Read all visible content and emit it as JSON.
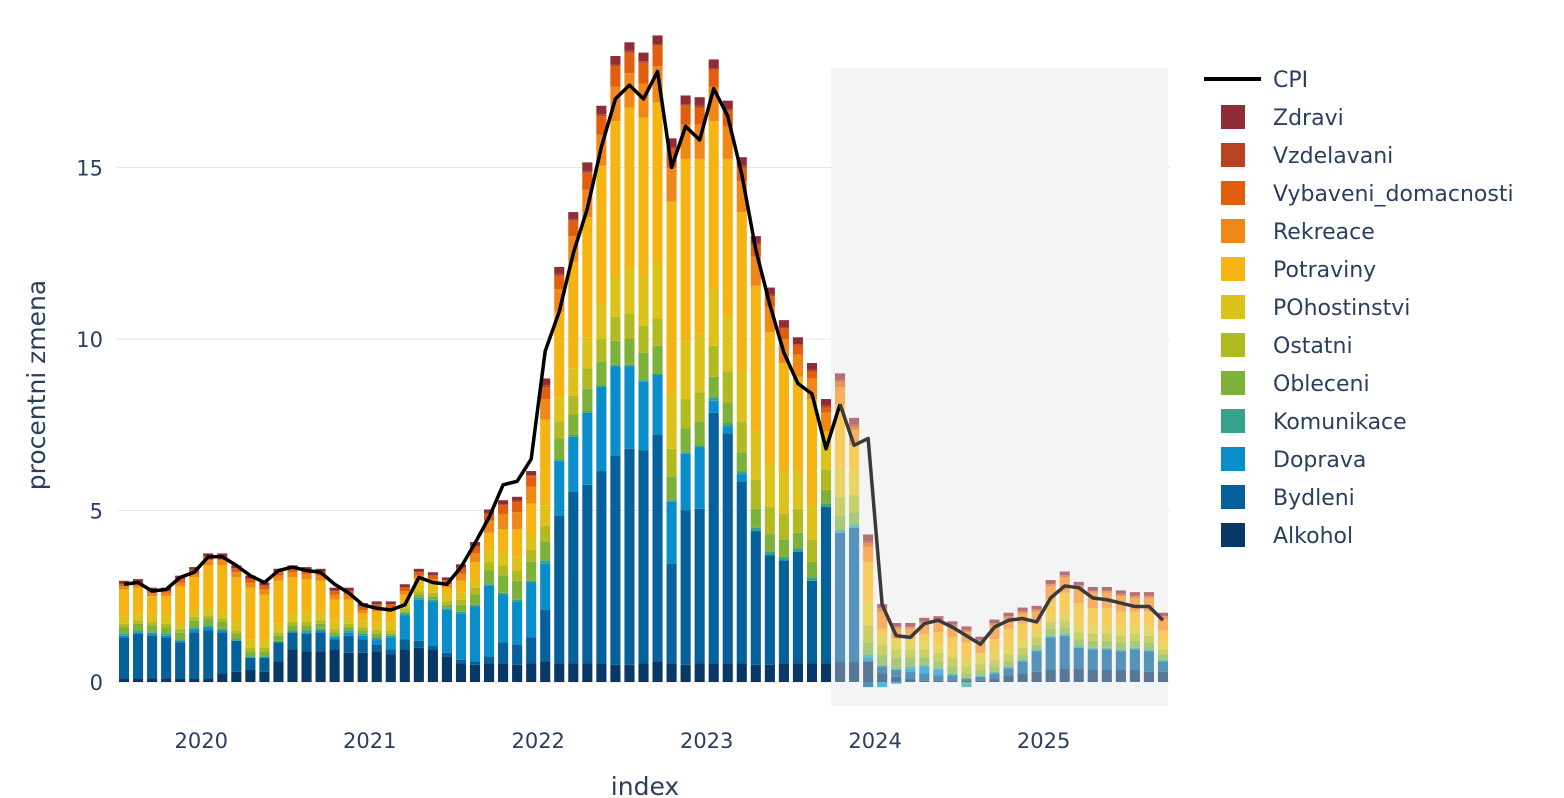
{
  "chart_data": {
    "type": "bar",
    "barmode": "stack",
    "xlabel": "index",
    "ylabel": "procentni zmena",
    "yticks": [
      0,
      5,
      10,
      15
    ],
    "ylim": [
      -0.2,
      18.0
    ],
    "x_tick_labels": [
      "2020",
      "2021",
      "2022",
      "2023",
      "2024",
      "2025"
    ],
    "x_range": [
      "2019-07",
      "2025-09"
    ],
    "forecast_region": {
      "start": "2023-10",
      "end": "2025-09",
      "color": "#efefef"
    },
    "legend_position": "right",
    "colors": {
      "Zdravi": "#8f2d36",
      "Vzdelavani": "#b8431f",
      "Vybaveni_domacnosti": "#e15e0f",
      "Rekreace": "#f08818",
      "Potraviny": "#f3b414",
      "POhostinstvi": "#dcc21b",
      "Ostatni": "#b2ba22",
      "Obleceni": "#7cb23a",
      "Komunikace": "#35a38b",
      "Doprava": "#0a8ec9",
      "Bydleni": "#06619a",
      "Alkohol": "#083866",
      "CPI": "#000000"
    },
    "legend": [
      "CPI",
      "Zdravi",
      "Vzdelavani",
      "Vybaveni_domacnosti",
      "Rekreace",
      "Potraviny",
      "POhostinstvi",
      "Ostatni",
      "Obleceni",
      "Komunikace",
      "Doprava",
      "Bydleni",
      "Alkohol"
    ],
    "dates": [
      "2019-07",
      "2019-08",
      "2019-09",
      "2019-10",
      "2019-11",
      "2019-12",
      "2020-01",
      "2020-02",
      "2020-03",
      "2020-04",
      "2020-05",
      "2020-06",
      "2020-07",
      "2020-08",
      "2020-09",
      "2020-10",
      "2020-11",
      "2020-12",
      "2021-01",
      "2021-02",
      "2021-03",
      "2021-04",
      "2021-05",
      "2021-06",
      "2021-07",
      "2021-08",
      "2021-09",
      "2021-10",
      "2021-11",
      "2021-12",
      "2022-01",
      "2022-02",
      "2022-03",
      "2022-04",
      "2022-05",
      "2022-06",
      "2022-07",
      "2022-08",
      "2022-09",
      "2022-10",
      "2022-11",
      "2022-12",
      "2023-01",
      "2023-02",
      "2023-03",
      "2023-04",
      "2023-05",
      "2023-06",
      "2023-07",
      "2023-08",
      "2023-09",
      "2023-10",
      "2023-11",
      "2023-12",
      "2024-01",
      "2024-02",
      "2024-03",
      "2024-04",
      "2024-05",
      "2024-06",
      "2024-07",
      "2024-08",
      "2024-09",
      "2024-10",
      "2024-11",
      "2024-12",
      "2025-01",
      "2025-02",
      "2025-03",
      "2025-04",
      "2025-05",
      "2025-06",
      "2025-07",
      "2025-08",
      "2025-09"
    ],
    "cpi": [
      2.85,
      2.9,
      2.65,
      2.7,
      3.05,
      3.2,
      3.65,
      3.65,
      3.4,
      3.1,
      2.9,
      3.25,
      3.35,
      3.25,
      3.2,
      2.85,
      2.6,
      2.25,
      2.15,
      2.1,
      2.25,
      3.05,
      2.9,
      2.85,
      3.35,
      4.05,
      4.8,
      5.75,
      5.85,
      6.5,
      9.65,
      10.8,
      12.5,
      13.8,
      15.6,
      17.0,
      17.4,
      17.0,
      17.8,
      15.0,
      16.2,
      15.8,
      17.3,
      16.5,
      14.8,
      12.6,
      11.0,
      9.6,
      8.7,
      8.4,
      6.8,
      8.1,
      6.9,
      7.1,
      2.25,
      1.35,
      1.3,
      1.7,
      1.8,
      1.6,
      1.35,
      1.1,
      1.6,
      1.8,
      1.85,
      1.75,
      2.45,
      2.8,
      2.75,
      2.45,
      2.4,
      2.3,
      2.2,
      2.2,
      1.8
    ],
    "series": [
      {
        "name": "Alkohol",
        "values": [
          0.1,
          0.1,
          0.1,
          0.1,
          0.1,
          0.1,
          0.1,
          0.25,
          0.3,
          0.35,
          0.3,
          0.6,
          0.95,
          0.9,
          0.9,
          0.95,
          0.85,
          0.85,
          0.9,
          0.8,
          0.95,
          1.0,
          0.95,
          0.75,
          0.55,
          0.5,
          0.55,
          0.55,
          0.5,
          0.55,
          0.6,
          0.55,
          0.55,
          0.55,
          0.55,
          0.5,
          0.5,
          0.55,
          0.6,
          0.55,
          0.5,
          0.55,
          0.55,
          0.55,
          0.55,
          0.5,
          0.5,
          0.55,
          0.55,
          0.55,
          0.55,
          0.6,
          0.6,
          0.6,
          0.25,
          0.15,
          0.1,
          0.05,
          0.05,
          0.05,
          0.05,
          0.05,
          0.1,
          0.2,
          0.25,
          0.3,
          0.35,
          0.4,
          0.4,
          0.35,
          0.35,
          0.35,
          0.35,
          0.3,
          0.3
        ]
      },
      {
        "name": "Bydleni",
        "values": [
          1.2,
          1.3,
          1.25,
          1.2,
          1.05,
          1.35,
          1.4,
          1.2,
          0.9,
          0.35,
          0.4,
          0.55,
          0.5,
          0.5,
          0.55,
          0.3,
          0.5,
          0.4,
          0.2,
          0.15,
          0.3,
          0.2,
          0.1,
          0.1,
          0.1,
          0.1,
          0.2,
          0.6,
          0.6,
          0.75,
          1.5,
          4.3,
          5.0,
          5.2,
          5.6,
          6.1,
          6.3,
          6.2,
          6.6,
          2.9,
          4.5,
          4.5,
          7.3,
          6.7,
          5.3,
          3.9,
          3.2,
          3.0,
          3.25,
          2.4,
          4.55,
          3.75,
          3.9,
          -0.15,
          0.2,
          0.2,
          0.2,
          0.2,
          0.15,
          0.15,
          0.05,
          0.1,
          0.15,
          0.2,
          0.35,
          0.6,
          0.95,
          0.95,
          0.6,
          0.6,
          0.6,
          0.55,
          0.6,
          0.6,
          0.3
        ]
      },
      {
        "name": "Doprava",
        "values": [
          0.05,
          0.05,
          0.05,
          0.05,
          0.05,
          0.1,
          0.1,
          0.05,
          0.0,
          0.0,
          0.0,
          0.0,
          0.0,
          0.05,
          0.05,
          0.05,
          0.1,
          0.1,
          0.15,
          0.35,
          0.7,
          1.2,
          1.3,
          1.25,
          1.35,
          1.6,
          2.05,
          1.4,
          1.25,
          1.6,
          1.35,
          1.6,
          1.6,
          2.1,
          2.45,
          2.6,
          2.4,
          2.0,
          1.75,
          1.8,
          1.65,
          1.8,
          0.35,
          0.2,
          0.2,
          0.0,
          0.0,
          0.0,
          0.0,
          0.0,
          0.0,
          0.0,
          0.0,
          0.1,
          -0.15,
          -0.05,
          0.1,
          0.2,
          0.15,
          0.0,
          0.0,
          0.0,
          0.0,
          0.0,
          0.0,
          0.0,
          0.0,
          0.0,
          0.0,
          0.0,
          0.0,
          0.0,
          0.0,
          0.0,
          0.0
        ]
      },
      {
        "name": "Komunikace",
        "values": [
          0.05,
          0.05,
          0.05,
          0.05,
          0.05,
          0.05,
          0.05,
          0.05,
          0.05,
          0.05,
          0.05,
          0.05,
          0.05,
          0.05,
          0.05,
          0.05,
          0.05,
          0.05,
          0.05,
          0.05,
          0.05,
          0.05,
          0.05,
          0.05,
          0.05,
          0.05,
          0.05,
          0.05,
          0.05,
          0.05,
          0.1,
          0.05,
          0.05,
          0.05,
          0.05,
          0.05,
          0.05,
          0.05,
          0.05,
          0.05,
          0.05,
          0.05,
          0.1,
          0.1,
          0.1,
          0.1,
          0.1,
          0.1,
          0.1,
          0.1,
          0.1,
          0.1,
          0.1,
          0.1,
          0.05,
          0.05,
          0.05,
          0.05,
          0.05,
          0.05,
          -0.15,
          0.05,
          0.05,
          0.05,
          0.05,
          0.05,
          0.05,
          0.05,
          0.05,
          0.05,
          0.05,
          0.05,
          0.05,
          0.05,
          0.05
        ]
      },
      {
        "name": "Obleceni",
        "values": [
          0.2,
          0.2,
          0.2,
          0.2,
          0.2,
          0.2,
          0.2,
          0.2,
          0.15,
          0.15,
          0.15,
          0.15,
          0.15,
          0.15,
          0.15,
          0.1,
          0.1,
          0.1,
          0.1,
          0.05,
          0.05,
          0.1,
          0.1,
          0.1,
          0.2,
          0.3,
          0.4,
          0.5,
          0.55,
          0.55,
          0.55,
          0.6,
          0.6,
          0.65,
          0.7,
          0.7,
          0.75,
          0.8,
          0.8,
          0.7,
          0.7,
          0.7,
          0.6,
          0.6,
          0.55,
          0.55,
          0.5,
          0.5,
          0.45,
          0.45,
          0.4,
          0.4,
          0.35,
          0.35,
          0.3,
          0.3,
          0.25,
          0.2,
          0.2,
          0.2,
          0.15,
          0.15,
          0.15,
          0.15,
          0.15,
          0.15,
          0.2,
          0.2,
          0.2,
          0.2,
          0.2,
          0.2,
          0.2,
          0.2,
          0.15
        ]
      },
      {
        "name": "Ostatni",
        "values": [
          0.1,
          0.1,
          0.1,
          0.1,
          0.1,
          0.1,
          0.1,
          0.1,
          0.1,
          0.1,
          0.1,
          0.1,
          0.1,
          0.1,
          0.1,
          0.1,
          0.1,
          0.1,
          0.1,
          0.1,
          0.1,
          0.1,
          0.1,
          0.1,
          0.15,
          0.2,
          0.25,
          0.3,
          0.3,
          0.35,
          0.45,
          0.5,
          0.55,
          0.6,
          0.65,
          0.7,
          0.75,
          0.8,
          0.8,
          0.8,
          0.85,
          0.85,
          0.9,
          0.9,
          0.9,
          0.85,
          0.8,
          0.75,
          0.7,
          0.65,
          0.6,
          0.55,
          0.5,
          0.5,
          0.3,
          0.25,
          0.25,
          0.25,
          0.25,
          0.25,
          0.2,
          0.2,
          0.2,
          0.2,
          0.2,
          0.2,
          0.2,
          0.2,
          0.2,
          0.2,
          0.2,
          0.2,
          0.2,
          0.2,
          0.15
        ]
      },
      {
        "name": "POhostinstvi",
        "values": [
          0.2,
          0.2,
          0.2,
          0.2,
          0.2,
          0.2,
          0.25,
          0.25,
          0.25,
          0.25,
          0.25,
          0.25,
          0.25,
          0.25,
          0.25,
          0.25,
          0.2,
          0.2,
          0.2,
          0.2,
          0.2,
          0.2,
          0.2,
          0.2,
          0.2,
          0.25,
          0.3,
          0.35,
          0.4,
          0.45,
          0.6,
          0.7,
          0.8,
          0.9,
          1.05,
          1.2,
          1.3,
          1.45,
          1.6,
          1.6,
          1.7,
          1.7,
          1.65,
          1.6,
          1.5,
          1.4,
          1.3,
          1.2,
          1.1,
          1.0,
          0.9,
          0.85,
          0.75,
          0.7,
          0.3,
          0.25,
          0.25,
          0.25,
          0.25,
          0.25,
          0.25,
          0.25,
          0.25,
          0.25,
          0.25,
          0.2,
          0.25,
          0.25,
          0.25,
          0.25,
          0.25,
          0.25,
          0.25,
          0.25,
          0.2
        ]
      },
      {
        "name": "Potraviny",
        "values": [
          0.8,
          0.75,
          0.55,
          0.6,
          1.05,
          0.95,
          1.2,
          1.3,
          1.3,
          1.5,
          1.3,
          1.25,
          1.05,
          1.0,
          0.9,
          0.6,
          0.5,
          0.2,
          0.35,
          0.35,
          0.2,
          0.15,
          0.1,
          0.2,
          0.35,
          0.5,
          0.55,
          0.7,
          0.8,
          0.9,
          2.5,
          2.5,
          3.1,
          3.5,
          4.0,
          4.5,
          4.7,
          4.6,
          4.7,
          5.6,
          5.3,
          5.1,
          4.9,
          4.6,
          4.6,
          4.25,
          3.8,
          3.2,
          2.75,
          3.1,
          0.2,
          1.85,
          0.7,
          1.15,
          0.15,
          0.05,
          0.05,
          0.2,
          0.35,
          0.35,
          0.45,
          0.05,
          0.35,
          0.5,
          0.45,
          0.25,
          0.4,
          0.55,
          0.6,
          0.5,
          0.5,
          0.45,
          0.4,
          0.45,
          0.35
        ]
      },
      {
        "name": "Rekreace",
        "values": [
          0.1,
          0.1,
          0.1,
          0.1,
          0.1,
          0.1,
          0.15,
          0.15,
          0.15,
          0.15,
          0.15,
          0.15,
          0.15,
          0.15,
          0.15,
          0.15,
          0.15,
          0.1,
          0.1,
          0.1,
          0.1,
          0.1,
          0.1,
          0.1,
          0.2,
          0.25,
          0.35,
          0.45,
          0.5,
          0.5,
          0.6,
          0.65,
          0.75,
          0.8,
          0.9,
          1.0,
          1.0,
          1.0,
          1.05,
          1.0,
          1.0,
          1.0,
          1.0,
          0.95,
          0.9,
          0.85,
          0.75,
          0.7,
          0.65,
          0.6,
          0.55,
          0.5,
          0.45,
          0.45,
          0.5,
          0.3,
          0.3,
          0.3,
          0.3,
          0.3,
          0.3,
          0.3,
          0.4,
          0.3,
          0.3,
          0.3,
          0.4,
          0.45,
          0.45,
          0.45,
          0.45,
          0.45,
          0.4,
          0.4,
          0.35
        ]
      },
      {
        "name": "Vybaveni_domacnosti",
        "values": [
          0.05,
          0.05,
          0.05,
          0.05,
          0.1,
          0.1,
          0.1,
          0.1,
          0.1,
          0.1,
          0.1,
          0.1,
          0.1,
          0.1,
          0.1,
          0.1,
          0.1,
          0.1,
          0.1,
          0.1,
          0.1,
          0.1,
          0.1,
          0.1,
          0.15,
          0.2,
          0.2,
          0.25,
          0.3,
          0.3,
          0.35,
          0.4,
          0.45,
          0.5,
          0.55,
          0.6,
          0.6,
          0.6,
          0.6,
          0.55,
          0.55,
          0.5,
          0.5,
          0.45,
          0.4,
          0.35,
          0.3,
          0.3,
          0.25,
          0.2,
          0.15,
          0.15,
          0.1,
          0.1,
          0.1,
          0.05,
          0.05,
          0.05,
          0.05,
          0.05,
          0.05,
          0.05,
          0.05,
          0.05,
          0.05,
          0.05,
          0.05,
          0.05,
          0.05,
          0.05,
          0.05,
          0.05,
          0.05,
          0.05,
          0.05
        ]
      },
      {
        "name": "Vzdelavani",
        "values": [
          0.02,
          0.02,
          0.02,
          0.02,
          0.02,
          0.02,
          0.02,
          0.02,
          0.02,
          0.02,
          0.02,
          0.02,
          0.02,
          0.02,
          0.02,
          0.02,
          0.02,
          0.02,
          0.02,
          0.02,
          0.02,
          0.02,
          0.02,
          0.02,
          0.03,
          0.03,
          0.03,
          0.03,
          0.03,
          0.03,
          0.05,
          0.05,
          0.05,
          0.05,
          0.05,
          0.05,
          0.05,
          0.05,
          0.05,
          0.05,
          0.05,
          0.05,
          0.05,
          0.05,
          0.05,
          0.05,
          0.05,
          0.05,
          0.05,
          0.05,
          0.05,
          0.05,
          0.05,
          0.05,
          0.02,
          0.02,
          0.02,
          0.02,
          0.02,
          0.02,
          0.02,
          0.02,
          0.02,
          0.02,
          0.02,
          0.02,
          0.02,
          0.02,
          0.02,
          0.02,
          0.02,
          0.02,
          0.02,
          0.02,
          0.02
        ]
      },
      {
        "name": "Zdravi",
        "values": [
          0.08,
          0.08,
          0.08,
          0.08,
          0.08,
          0.08,
          0.08,
          0.08,
          0.08,
          0.08,
          0.08,
          0.08,
          0.08,
          0.08,
          0.08,
          0.08,
          0.08,
          0.08,
          0.08,
          0.08,
          0.08,
          0.08,
          0.08,
          0.08,
          0.1,
          0.1,
          0.1,
          0.12,
          0.12,
          0.12,
          0.2,
          0.2,
          0.2,
          0.25,
          0.25,
          0.25,
          0.25,
          0.25,
          0.25,
          0.25,
          0.25,
          0.25,
          0.25,
          0.25,
          0.25,
          0.2,
          0.2,
          0.2,
          0.2,
          0.2,
          0.2,
          0.2,
          0.2,
          0.2,
          0.1,
          0.1,
          0.1,
          0.1,
          0.1,
          0.1,
          0.1,
          0.1,
          0.1,
          0.1,
          0.1,
          0.1,
          0.1,
          0.1,
          0.1,
          0.1,
          0.1,
          0.1,
          0.1,
          0.1,
          0.1
        ]
      }
    ]
  }
}
